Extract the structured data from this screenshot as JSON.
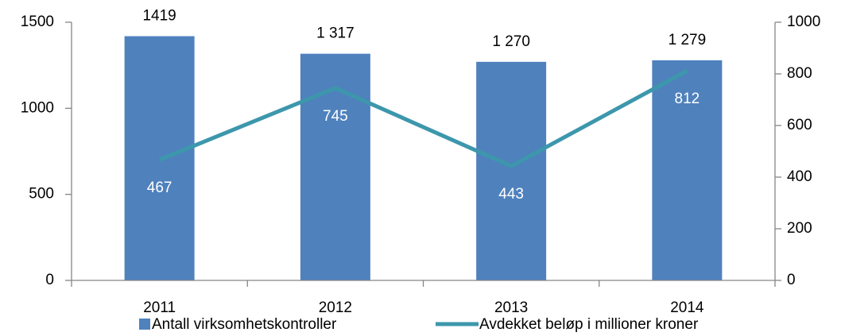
{
  "chart_data": {
    "type": "bar",
    "categories": [
      "2011",
      "2012",
      "2013",
      "2014"
    ],
    "series": [
      {
        "name": "Antall virksomhetskontroller",
        "type": "bar",
        "color": "#4f81bd",
        "values": [
          1419,
          1317,
          1270,
          1279
        ],
        "value_labels": [
          "1419",
          "1 317",
          "1 270",
          "1 279"
        ]
      },
      {
        "name": "Avdekket beløp i millioner kroner",
        "type": "line",
        "axis": "y2",
        "color": "#3d97ac",
        "values": [
          467,
          745,
          443,
          812
        ]
      }
    ],
    "ylim": [
      0,
      1500
    ],
    "yticks": [
      0,
      500,
      1000,
      1500
    ],
    "y2lim": [
      0,
      1000
    ],
    "y2ticks": [
      0,
      200,
      400,
      600,
      800,
      1000
    ],
    "grid": false,
    "legend": "bottom"
  }
}
